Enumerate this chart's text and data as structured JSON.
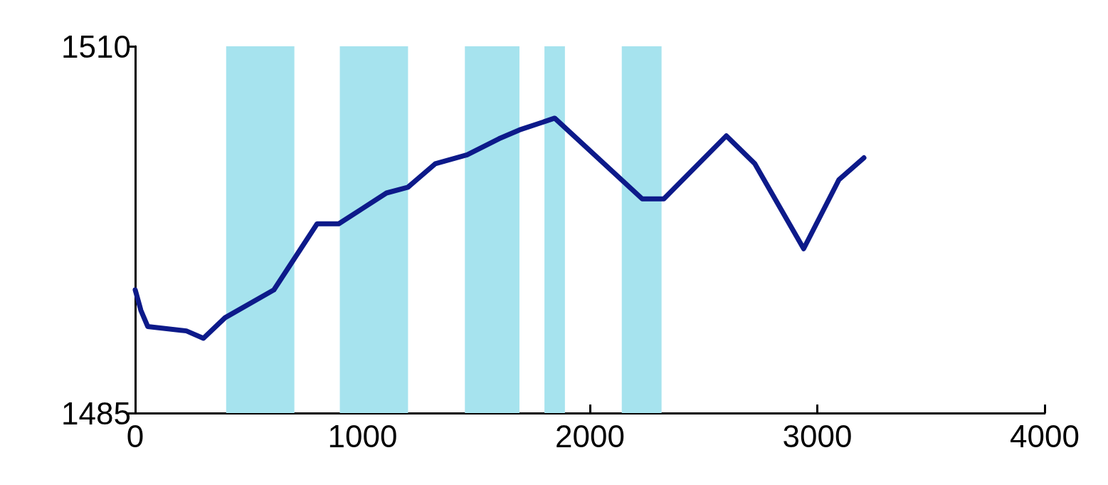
{
  "chart_data": {
    "type": "line",
    "x": [
      0,
      25,
      55,
      225,
      300,
      395,
      610,
      800,
      895,
      1105,
      1200,
      1320,
      1460,
      1600,
      1690,
      1845,
      2230,
      2325,
      2600,
      2725,
      2940,
      3095,
      3205
    ],
    "series": [
      {
        "color": "#0d1a8a",
        "values": [
          1493.4,
          1492,
          1490.9,
          1490.6,
          1490.1,
          1491.5,
          1493.4,
          1497.9,
          1497.9,
          1500,
          1500.4,
          1502,
          1502.6,
          1503.7,
          1504.3,
          1505.1,
          1499.6,
          1499.6,
          1503.9,
          1502,
          1496.2,
          1500.9,
          1502.4
        ]
      }
    ],
    "xlim": [
      0,
      4000
    ],
    "xticks": [
      0,
      1000,
      2000,
      3000,
      4000
    ],
    "ylim": [
      1485,
      1510
    ],
    "yticks": [
      1485,
      1510
    ],
    "bands": [
      {
        "axis": "x",
        "from": 400,
        "to": 700,
        "color": "#a6e3ee"
      },
      {
        "axis": "x",
        "from": 900,
        "to": 1200,
        "color": "#a6e3ee"
      },
      {
        "axis": "x",
        "from": 1450,
        "to": 1690,
        "color": "#a6e3ee"
      },
      {
        "axis": "x",
        "from": 1800,
        "to": 1890,
        "color": "#a6e3ee"
      },
      {
        "axis": "x",
        "from": 2140,
        "to": 2315,
        "color": "#a6e3ee"
      }
    ],
    "grid": false,
    "marker": "none",
    "line_style": "solid"
  }
}
